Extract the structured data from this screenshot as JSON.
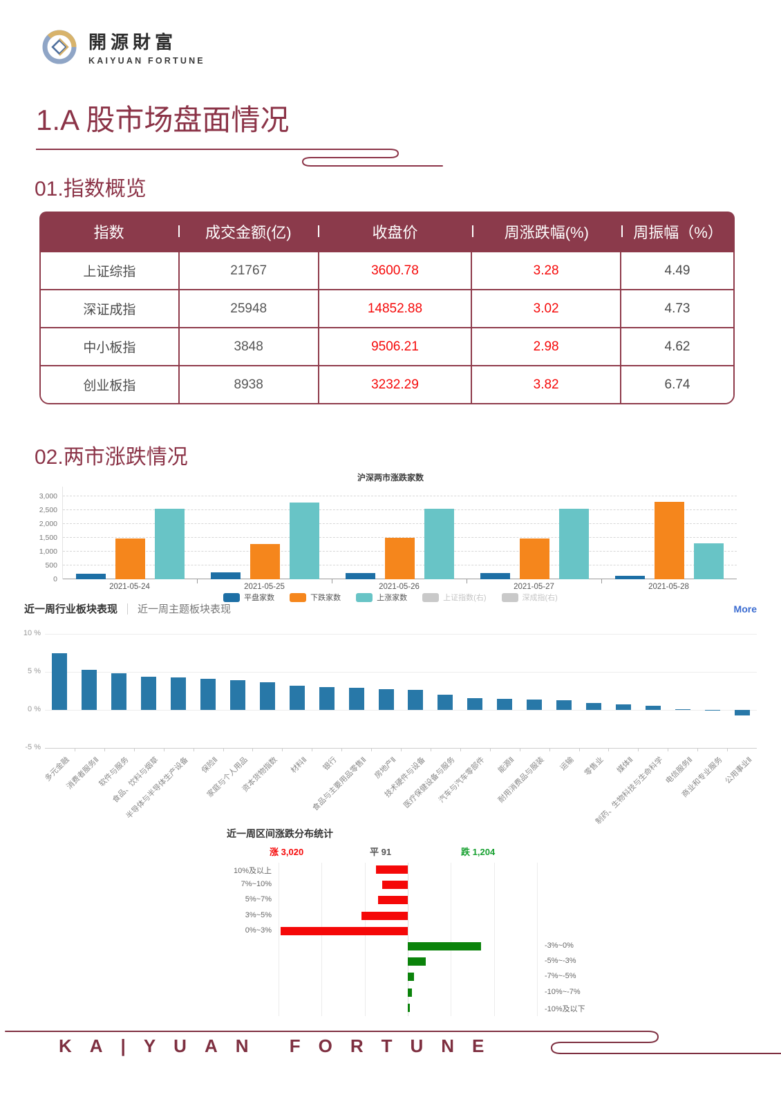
{
  "brand": {
    "logo_cn": "開源財富",
    "logo_en": "KAIYUAN FORTUNE"
  },
  "page": {
    "title": "1.A 股市场盘面情况",
    "section1_title": "01.指数概览",
    "section2_title": "02.两市涨跌情况"
  },
  "colors": {
    "maroon": "#8b3347",
    "red": "#f50808",
    "green_bar": "#0b830b",
    "green_text": "#16a02f",
    "flat_blue": "#1d6fa5",
    "down_orange": "#f5861c",
    "up_teal": "#68c4c6",
    "industry_blue": "#2878a8",
    "more_blue": "#3a6bd0"
  },
  "index_table": {
    "headers": [
      "指数",
      "成交金额(亿)",
      "收盘价",
      "周涨跌幅(%)",
      "周振幅（%）"
    ],
    "rows": [
      [
        "上证综指",
        "21767",
        "3600.78",
        "3.28",
        "4.49"
      ],
      [
        "深证成指",
        "25948",
        "14852.88",
        "3.02",
        "4.73"
      ],
      [
        "中小板指",
        "3848",
        "9506.21",
        "2.98",
        "4.62"
      ],
      [
        "创业板指",
        "8938",
        "3232.29",
        "3.82",
        "6.74"
      ]
    ]
  },
  "chart_data": [
    {
      "id": "updown",
      "type": "bar",
      "title": "沪深两市涨跌家数",
      "categories": [
        "2021-05-24",
        "2021-05-25",
        "2021-05-26",
        "2021-05-27",
        "2021-05-28"
      ],
      "series": [
        {
          "name": "平盘家数",
          "color": "#1d6fa5",
          "values": [
            200,
            250,
            225,
            230,
            130
          ]
        },
        {
          "name": "下跌家数",
          "color": "#f5861c",
          "values": [
            1480,
            1270,
            1490,
            1470,
            2800
          ]
        },
        {
          "name": "上涨家数",
          "color": "#68c4c6",
          "values": [
            2550,
            2780,
            2560,
            2550,
            1310
          ]
        }
      ],
      "disabled_legend": [
        "上证指数(右)",
        "深成指(右)"
      ],
      "ylim": [
        0,
        3000
      ],
      "yticks": [
        "0",
        "500",
        "1,000",
        "1,500",
        "2,000",
        "2,500",
        "3,000"
      ],
      "grid": "dashed-horizontal",
      "legend_position": "bottom"
    },
    {
      "id": "industry",
      "type": "bar",
      "tabs": [
        "近一周行业板块表现",
        "近一周主题板块表现"
      ],
      "more_label": "More",
      "categories": [
        "多元金融",
        "消费者服务Ⅱ",
        "软件与服务",
        "食品、饮料与烟草",
        "半导体与半导体生产设备",
        "保险Ⅱ",
        "家庭与个人用品",
        "资本货物指数",
        "材料Ⅱ",
        "银行",
        "食品与主要用品零售Ⅱ",
        "房地产Ⅱ",
        "技术硬件与设备",
        "医疗保健设备与服务",
        "汽车与汽车零部件",
        "能源Ⅱ",
        "耐用消费品与服装",
        "运输",
        "零售业",
        "媒体Ⅱ",
        "制药、生物科技与生命科学",
        "电信服务Ⅱ",
        "商业和专业服务",
        "公用事业Ⅱ"
      ],
      "values": [
        7.5,
        5.3,
        4.8,
        4.4,
        4.3,
        4.1,
        3.9,
        3.6,
        3.2,
        3.0,
        2.9,
        2.75,
        2.6,
        2.0,
        1.55,
        1.45,
        1.4,
        1.25,
        0.95,
        0.75,
        0.55,
        0.1,
        -0.1,
        -0.7
      ],
      "ylabel": "",
      "ylim": [
        -5,
        10
      ],
      "yticks": [
        {
          "v": 10,
          "label": "10 %"
        },
        {
          "v": 5,
          "label": "5 %"
        },
        {
          "v": 0,
          "label": "0 %"
        },
        {
          "v": -5,
          "label": "-5 %"
        }
      ],
      "xlabel_rotation": 45
    },
    {
      "id": "distribution",
      "type": "bar",
      "title": "近一周区间涨跌分布统计",
      "stats": {
        "up_label": "涨",
        "up": "3,020",
        "flat_label": "平",
        "flat": "91",
        "down_label": "跌",
        "down": "1,204"
      },
      "up_bins": {
        "labels": [
          "10%及以上",
          "7%~10%",
          "5%~7%",
          "3%~5%",
          "0%~3%"
        ],
        "values": [
          370,
          295,
          345,
          535,
          1475
        ]
      },
      "down_bins": {
        "labels": [
          "-3%~0%",
          "-5%~-3%",
          "-7%~-5%",
          "-10%~-7%",
          "-10%及以下"
        ],
        "values": [
          850,
          210,
          70,
          48,
          26
        ]
      },
      "grid_step": 500,
      "orientation": "horizontal-diverging"
    }
  ],
  "footer": {
    "text": "KA|YUAN FORTUNE"
  }
}
